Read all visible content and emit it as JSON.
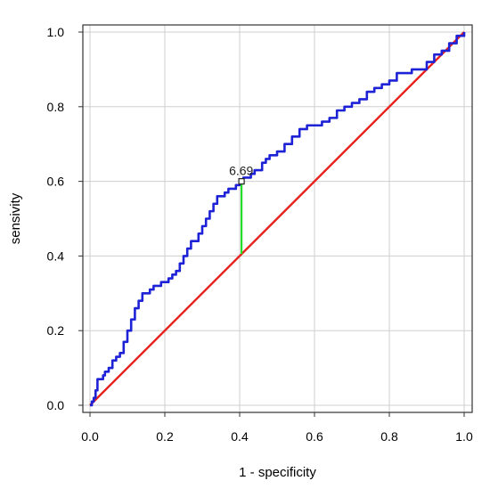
{
  "chart_data": {
    "type": "line",
    "xlabel": "1 - specificity",
    "ylabel": "sensivity",
    "xlim": [
      0,
      1
    ],
    "ylim": [
      0,
      1
    ],
    "x_ticks": [
      "0.0",
      "0.2",
      "0.4",
      "0.6",
      "0.8",
      "1.0"
    ],
    "y_ticks": [
      "0.0",
      "0.2",
      "0.4",
      "0.6",
      "0.8",
      "1.0"
    ],
    "grid": true,
    "series": [
      {
        "color": "#1e22d6",
        "x": [
          0.0,
          0.005,
          0.01,
          0.015,
          0.02,
          0.03,
          0.035,
          0.04,
          0.05,
          0.06,
          0.07,
          0.08,
          0.09,
          0.1,
          0.11,
          0.12,
          0.13,
          0.14,
          0.15,
          0.16,
          0.17,
          0.18,
          0.19,
          0.2,
          0.21,
          0.22,
          0.23,
          0.24,
          0.25,
          0.26,
          0.27,
          0.28,
          0.29,
          0.3,
          0.31,
          0.32,
          0.33,
          0.34,
          0.35,
          0.36,
          0.37,
          0.38,
          0.39,
          0.4,
          0.405,
          0.41,
          0.42,
          0.43,
          0.44,
          0.45,
          0.46,
          0.47,
          0.48,
          0.49,
          0.5,
          0.52,
          0.54,
          0.56,
          0.58,
          0.6,
          0.62,
          0.64,
          0.66,
          0.68,
          0.7,
          0.72,
          0.74,
          0.76,
          0.78,
          0.8,
          0.82,
          0.84,
          0.86,
          0.88,
          0.9,
          0.92,
          0.94,
          0.96,
          0.98,
          1.0
        ],
        "y": [
          0.0,
          0.01,
          0.02,
          0.04,
          0.07,
          0.07,
          0.08,
          0.09,
          0.1,
          0.12,
          0.13,
          0.14,
          0.17,
          0.2,
          0.23,
          0.26,
          0.28,
          0.3,
          0.3,
          0.31,
          0.32,
          0.32,
          0.33,
          0.33,
          0.34,
          0.35,
          0.36,
          0.38,
          0.4,
          0.42,
          0.44,
          0.44,
          0.46,
          0.48,
          0.5,
          0.52,
          0.54,
          0.56,
          0.56,
          0.57,
          0.58,
          0.58,
          0.59,
          0.6,
          0.6,
          0.61,
          0.61,
          0.62,
          0.63,
          0.63,
          0.65,
          0.66,
          0.67,
          0.67,
          0.68,
          0.7,
          0.72,
          0.74,
          0.75,
          0.75,
          0.76,
          0.77,
          0.79,
          0.8,
          0.81,
          0.82,
          0.84,
          0.85,
          0.86,
          0.87,
          0.89,
          0.89,
          0.9,
          0.9,
          0.92,
          0.94,
          0.95,
          0.97,
          0.99,
          1.0
        ]
      },
      {
        "color": "#e8211c",
        "x": [
          0,
          1
        ],
        "y": [
          0,
          1
        ]
      }
    ],
    "cutoff": {
      "label": "6.69",
      "x": 0.405,
      "y_low": 0.405,
      "y_high": 0.6,
      "color": "#22e02a"
    }
  }
}
